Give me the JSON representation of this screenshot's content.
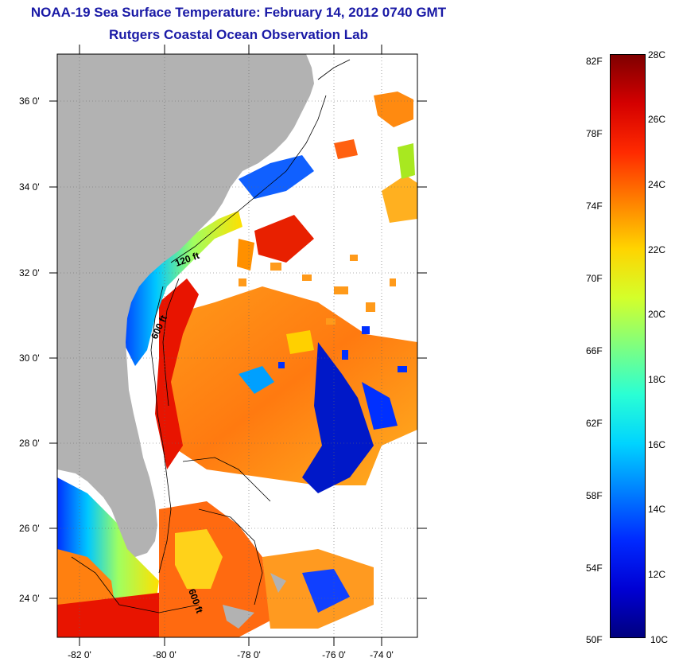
{
  "title": {
    "line1": "NOAA-19 Sea Surface Temperature:  February 14, 2012 0740 GMT",
    "line2": "Rutgers Coastal Ocean Observation Lab"
  },
  "map": {
    "lat_labels": [
      "36 0'",
      "34 0'",
      "32 0'",
      "30 0'",
      "28 0'",
      "26 0'",
      "24 0'"
    ],
    "lon_labels": [
      "-82 0'",
      "-80 0'",
      "-78 0'",
      "-76 0'",
      "-74 0'"
    ],
    "contour_labels": [
      "120 ft",
      "600 ft",
      "600 ft"
    ],
    "colors": {
      "land": "#b2b2b2",
      "cloud": "#ffffff"
    }
  },
  "colorbar": {
    "fahrenheit": [
      "82F",
      "78F",
      "74F",
      "70F",
      "66F",
      "62F",
      "58F",
      "54F",
      "50F"
    ],
    "celsius": [
      "28C",
      "26C",
      "24C",
      "22C",
      "20C",
      "18C",
      "16C",
      "14C",
      "12C",
      "10C"
    ],
    "colors": [
      "#7f0000",
      "#d40000",
      "#ff2a00",
      "#ff7f00",
      "#ffd400",
      "#d4ff2a",
      "#7fff7f",
      "#2affd4",
      "#00d4ff",
      "#007fff",
      "#002aff",
      "#0000d4",
      "#00007f"
    ]
  }
}
